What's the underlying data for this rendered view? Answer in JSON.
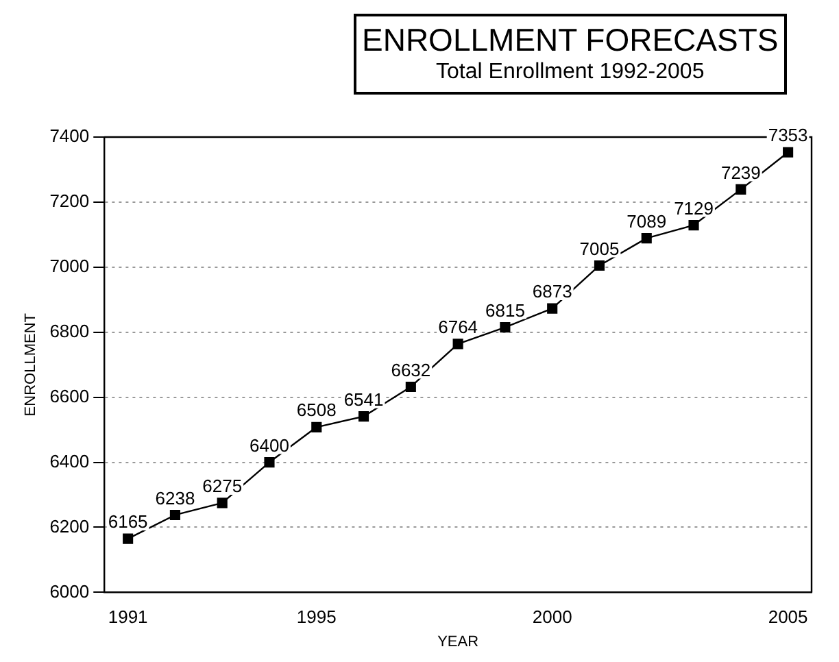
{
  "chart_data": {
    "type": "line",
    "title": "ENROLLMENT FORECASTS",
    "subtitle": "Total Enrollment 1992-2005",
    "xlabel": "YEAR",
    "ylabel": "ENROLLMENT",
    "x": [
      1991,
      1992,
      1993,
      1994,
      1995,
      1996,
      1997,
      1998,
      1999,
      2000,
      2001,
      2002,
      2003,
      2004,
      2005
    ],
    "series": [
      {
        "color": "#000000",
        "values": [
          6165,
          6238,
          6275,
          6400,
          6508,
          6541,
          6632,
          6764,
          6815,
          6873,
          7005,
          7089,
          7129,
          7239,
          7353
        ]
      }
    ],
    "xlim": [
      1990.5,
      2005.5
    ],
    "xticks": [
      1991,
      1995,
      2000,
      2005
    ],
    "ylim": [
      6000,
      7400
    ],
    "yticks": [
      6000,
      6200,
      6400,
      6600,
      6800,
      7000,
      7200,
      7400
    ],
    "grid": "y",
    "marker": "square",
    "line_style": "solid",
    "data_labels": true,
    "legend": false
  }
}
